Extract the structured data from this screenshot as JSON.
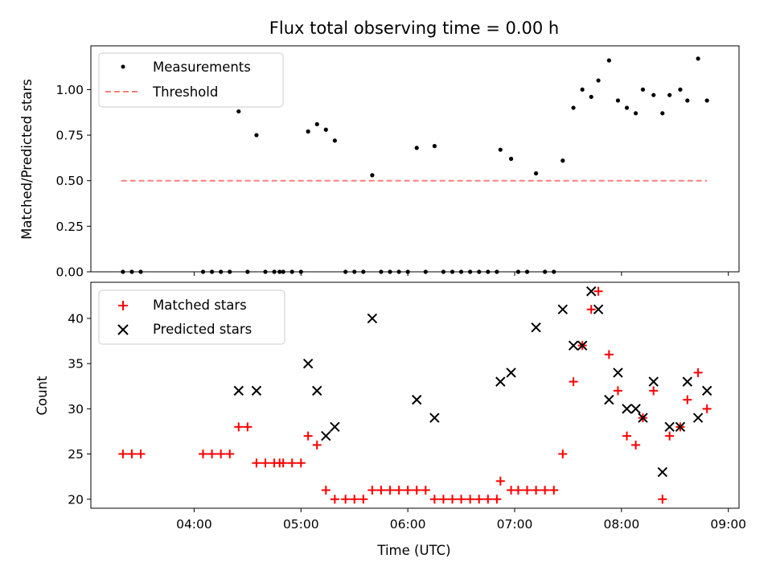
{
  "chart_data": [
    {
      "type": "scatter",
      "title": "Flux total observing time = 0.00 h",
      "xlabel": "",
      "ylabel": "Matched/Predicted stars",
      "xlim": [
        "03:02",
        "09:06"
      ],
      "ylim": [
        0,
        1.24
      ],
      "grid": false,
      "legend": "top-left",
      "x_ticks": [
        "04:00",
        "05:00",
        "06:00",
        "07:00",
        "08:00",
        "09:00"
      ],
      "y_ticks": [
        "0.00",
        "0.25",
        "0.50",
        "0.75",
        "1.00"
      ],
      "series": [
        {
          "name": "Measurements",
          "color": "#000000",
          "marker": "dot",
          "points": [
            [
              "03:20",
              0.0
            ],
            [
              "03:25",
              0.0
            ],
            [
              "03:30",
              0.0
            ],
            [
              "04:05",
              0.0
            ],
            [
              "04:10",
              0.0
            ],
            [
              "04:15",
              0.0
            ],
            [
              "04:20",
              0.0
            ],
            [
              "04:25",
              0.88
            ],
            [
              "04:30",
              0.0
            ],
            [
              "04:35",
              0.75
            ],
            [
              "04:40",
              0.0
            ],
            [
              "04:45",
              0.0
            ],
            [
              "04:48",
              0.0
            ],
            [
              "04:50",
              0.0
            ],
            [
              "04:55",
              0.0
            ],
            [
              "05:00",
              0.0
            ],
            [
              "05:04",
              0.77
            ],
            [
              "05:09",
              0.81
            ],
            [
              "05:14",
              0.78
            ],
            [
              "05:19",
              0.72
            ],
            [
              "05:25",
              0.0
            ],
            [
              "05:30",
              0.0
            ],
            [
              "05:35",
              0.0
            ],
            [
              "05:40",
              0.53
            ],
            [
              "05:45",
              0.0
            ],
            [
              "05:50",
              0.0
            ],
            [
              "05:55",
              0.0
            ],
            [
              "06:00",
              0.0
            ],
            [
              "06:05",
              0.68
            ],
            [
              "06:10",
              0.0
            ],
            [
              "06:15",
              0.69
            ],
            [
              "06:20",
              0.0
            ],
            [
              "06:25",
              0.0
            ],
            [
              "06:30",
              0.0
            ],
            [
              "06:35",
              0.0
            ],
            [
              "06:40",
              0.0
            ],
            [
              "06:45",
              0.0
            ],
            [
              "06:50",
              0.0
            ],
            [
              "06:52",
              0.67
            ],
            [
              "06:58",
              0.62
            ],
            [
              "07:02",
              0.0
            ],
            [
              "07:07",
              0.0
            ],
            [
              "07:12",
              0.54
            ],
            [
              "07:17",
              0.0
            ],
            [
              "07:22",
              0.0
            ],
            [
              "07:27",
              0.61
            ],
            [
              "07:33",
              0.9
            ],
            [
              "07:38",
              1.0
            ],
            [
              "07:43",
              0.96
            ],
            [
              "07:47",
              1.05
            ],
            [
              "07:53",
              1.16
            ],
            [
              "07:58",
              0.94
            ],
            [
              "08:03",
              0.9
            ],
            [
              "08:08",
              0.87
            ],
            [
              "08:12",
              1.0
            ],
            [
              "08:18",
              0.97
            ],
            [
              "08:23",
              0.87
            ],
            [
              "08:27",
              0.97
            ],
            [
              "08:33",
              1.0
            ],
            [
              "08:37",
              0.94
            ],
            [
              "08:43",
              1.17
            ],
            [
              "08:48",
              0.94
            ]
          ]
        },
        {
          "name": "Threshold",
          "color": "#ff7f7f",
          "style": "dashed",
          "points": [
            [
              "03:19",
              0.5
            ],
            [
              "08:48",
              0.5
            ]
          ]
        }
      ]
    },
    {
      "type": "scatter",
      "xlabel": "Time (UTC)",
      "ylabel": "Count",
      "xlim": [
        "03:02",
        "09:06"
      ],
      "ylim": [
        19,
        44
      ],
      "grid": false,
      "legend": "top-left",
      "x_ticks": [
        "04:00",
        "05:00",
        "06:00",
        "07:00",
        "08:00",
        "09:00"
      ],
      "y_ticks": [
        "20",
        "25",
        "30",
        "35",
        "40"
      ],
      "series": [
        {
          "name": "Matched stars",
          "color": "#ff0000",
          "marker": "plus",
          "points": [
            [
              "03:20",
              25
            ],
            [
              "03:25",
              25
            ],
            [
              "03:30",
              25
            ],
            [
              "04:05",
              25
            ],
            [
              "04:10",
              25
            ],
            [
              "04:15",
              25
            ],
            [
              "04:20",
              25
            ],
            [
              "04:25",
              28
            ],
            [
              "04:30",
              28
            ],
            [
              "04:35",
              24
            ],
            [
              "04:40",
              24
            ],
            [
              "04:45",
              24
            ],
            [
              "04:48",
              24
            ],
            [
              "04:50",
              24
            ],
            [
              "04:55",
              24
            ],
            [
              "05:00",
              24
            ],
            [
              "05:04",
              27
            ],
            [
              "05:09",
              26
            ],
            [
              "05:14",
              21
            ],
            [
              "05:19",
              20
            ],
            [
              "05:25",
              20
            ],
            [
              "05:30",
              20
            ],
            [
              "05:35",
              20
            ],
            [
              "05:40",
              21
            ],
            [
              "05:45",
              21
            ],
            [
              "05:50",
              21
            ],
            [
              "05:55",
              21
            ],
            [
              "06:00",
              21
            ],
            [
              "06:05",
              21
            ],
            [
              "06:10",
              21
            ],
            [
              "06:15",
              20
            ],
            [
              "06:20",
              20
            ],
            [
              "06:25",
              20
            ],
            [
              "06:30",
              20
            ],
            [
              "06:35",
              20
            ],
            [
              "06:40",
              20
            ],
            [
              "06:45",
              20
            ],
            [
              "06:50",
              20
            ],
            [
              "06:52",
              22
            ],
            [
              "06:58",
              21
            ],
            [
              "07:02",
              21
            ],
            [
              "07:07",
              21
            ],
            [
              "07:12",
              21
            ],
            [
              "07:17",
              21
            ],
            [
              "07:22",
              21
            ],
            [
              "07:27",
              25
            ],
            [
              "07:33",
              33
            ],
            [
              "07:38",
              37
            ],
            [
              "07:43",
              41
            ],
            [
              "07:47",
              43
            ],
            [
              "07:53",
              36
            ],
            [
              "07:58",
              32
            ],
            [
              "08:03",
              27
            ],
            [
              "08:08",
              26
            ],
            [
              "08:12",
              29
            ],
            [
              "08:18",
              32
            ],
            [
              "08:23",
              20
            ],
            [
              "08:27",
              27
            ],
            [
              "08:33",
              28
            ],
            [
              "08:37",
              31
            ],
            [
              "08:43",
              34
            ],
            [
              "08:48",
              30
            ]
          ]
        },
        {
          "name": "Predicted stars",
          "color": "#000000",
          "marker": "x",
          "points": [
            [
              "04:25",
              32
            ],
            [
              "04:35",
              32
            ],
            [
              "05:04",
              35
            ],
            [
              "05:09",
              32
            ],
            [
              "05:14",
              27
            ],
            [
              "05:19",
              28
            ],
            [
              "05:40",
              40
            ],
            [
              "06:05",
              31
            ],
            [
              "06:15",
              29
            ],
            [
              "06:52",
              33
            ],
            [
              "06:58",
              34
            ],
            [
              "07:12",
              39
            ],
            [
              "07:27",
              41
            ],
            [
              "07:33",
              37
            ],
            [
              "07:38",
              37
            ],
            [
              "07:43",
              43
            ],
            [
              "07:47",
              41
            ],
            [
              "07:53",
              31
            ],
            [
              "07:58",
              34
            ],
            [
              "08:03",
              30
            ],
            [
              "08:08",
              30
            ],
            [
              "08:12",
              29
            ],
            [
              "08:18",
              33
            ],
            [
              "08:23",
              23
            ],
            [
              "08:27",
              28
            ],
            [
              "08:33",
              28
            ],
            [
              "08:37",
              33
            ],
            [
              "08:43",
              29
            ],
            [
              "08:48",
              32
            ]
          ]
        }
      ]
    }
  ]
}
